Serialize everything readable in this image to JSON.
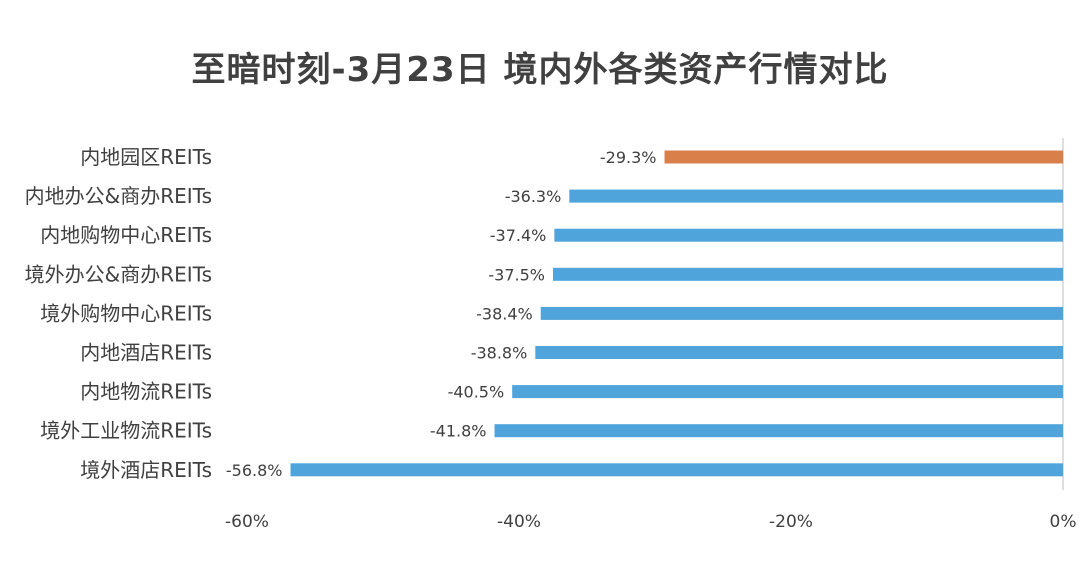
{
  "chart_data": {
    "type": "bar",
    "orientation": "horizontal",
    "title": "至暗时刻-3月23日 境内外各类资产行情对比",
    "xlabel": "",
    "ylabel": "",
    "categories": [
      "内地园区REITs",
      "内地办公&商办REITs",
      "内地购物中心REITs",
      "境外办公&商办REITs",
      "境外购物中心REITs",
      "内地酒店REITs",
      "内地物流REITs",
      "境外工业物流REITs",
      "境外酒店REITs"
    ],
    "values": [
      -29.3,
      -36.3,
      -37.4,
      -37.5,
      -38.4,
      -38.8,
      -40.5,
      -41.8,
      -56.8
    ],
    "data_labels": [
      "-29.3%",
      "-36.3%",
      "-37.4%",
      "-37.5%",
      "-38.4%",
      "-38.8%",
      "-40.5%",
      "-41.8%",
      "-56.8%"
    ],
    "xlim": [
      -60,
      0
    ],
    "x_ticks": [
      -60,
      -40,
      -20,
      0
    ],
    "x_tick_labels": [
      "-60%",
      "-40%",
      "-20%",
      "0%"
    ],
    "grid": false,
    "legend": "none",
    "colors": {
      "highlight": "#D9804A",
      "default": "#4EA4DB",
      "axis": "#bfbfbf",
      "text": "#404040"
    },
    "highlight_index": 0
  }
}
